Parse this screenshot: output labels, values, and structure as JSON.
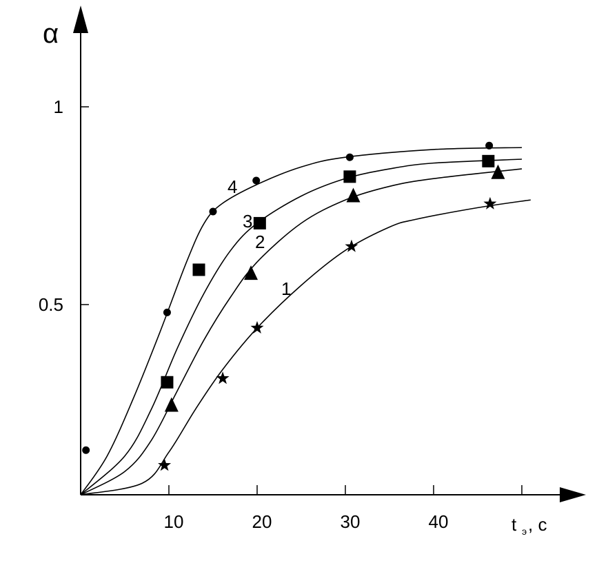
{
  "chart_data": {
    "type": "line",
    "title": "",
    "xlabel": "t",
    "xlabel_sub": "э",
    "xlabel_unit": ", c",
    "ylabel": "α",
    "xlim": [
      0,
      52
    ],
    "ylim": [
      0,
      1.1
    ],
    "grid": false,
    "x_ticks": [
      10,
      20,
      30,
      40,
      50
    ],
    "x_tick_labels": [
      "10",
      "20",
      "30",
      "40",
      ""
    ],
    "y_ticks": [
      0.5,
      1
    ],
    "y_tick_labels": [
      "0.5",
      "1"
    ],
    "series": [
      {
        "name": "1",
        "marker": "star",
        "points": [
          [
            9.5,
            0.076
          ],
          [
            16.1,
            0.3
          ],
          [
            20,
            0.43
          ],
          [
            30.7,
            0.64
          ],
          [
            46.4,
            0.75
          ]
        ],
        "curve": [
          [
            0,
            0
          ],
          [
            7,
            0.03
          ],
          [
            10,
            0.11
          ],
          [
            13,
            0.22
          ],
          [
            16,
            0.32
          ],
          [
            20,
            0.43
          ],
          [
            25,
            0.54
          ],
          [
            30,
            0.63
          ],
          [
            35,
            0.69
          ],
          [
            38,
            0.71
          ],
          [
            45,
            0.74
          ],
          [
            51,
            0.76
          ]
        ]
      },
      {
        "name": "2",
        "marker": "triangle",
        "points": [
          [
            10.3,
            0.23
          ],
          [
            19.3,
            0.57
          ],
          [
            30.9,
            0.77
          ],
          [
            47.3,
            0.83
          ]
        ],
        "curve": [
          [
            0,
            0
          ],
          [
            5,
            0.06
          ],
          [
            8,
            0.14
          ],
          [
            11,
            0.27
          ],
          [
            14,
            0.4
          ],
          [
            17,
            0.51
          ],
          [
            20,
            0.6
          ],
          [
            25,
            0.7
          ],
          [
            30,
            0.76
          ],
          [
            35,
            0.795
          ],
          [
            40,
            0.815
          ],
          [
            50,
            0.84
          ]
        ]
      },
      {
        "name": "3",
        "marker": "square",
        "points": [
          [
            9.8,
            0.29
          ],
          [
            13.4,
            0.58
          ],
          [
            20.3,
            0.7
          ],
          [
            30.5,
            0.82
          ],
          [
            46.2,
            0.86
          ]
        ],
        "curve": [
          [
            0,
            0
          ],
          [
            5,
            0.1
          ],
          [
            8,
            0.22
          ],
          [
            11,
            0.38
          ],
          [
            14,
            0.52
          ],
          [
            17,
            0.63
          ],
          [
            20,
            0.7
          ],
          [
            25,
            0.77
          ],
          [
            30,
            0.815
          ],
          [
            35,
            0.84
          ],
          [
            40,
            0.855
          ],
          [
            50,
            0.865
          ]
        ]
      },
      {
        "name": "4",
        "marker": "circle",
        "points": [
          [
            0.6,
            0.115
          ],
          [
            9.8,
            0.47
          ],
          [
            15,
            0.73
          ],
          [
            19.9,
            0.81
          ],
          [
            30.5,
            0.87
          ],
          [
            46.3,
            0.9
          ]
        ],
        "curve": [
          [
            0,
            0
          ],
          [
            3,
            0.1
          ],
          [
            6,
            0.25
          ],
          [
            9,
            0.42
          ],
          [
            12,
            0.6
          ],
          [
            14,
            0.7
          ],
          [
            16,
            0.75
          ],
          [
            20,
            0.8
          ],
          [
            25,
            0.845
          ],
          [
            30,
            0.87
          ],
          [
            40,
            0.89
          ],
          [
            50,
            0.895
          ]
        ]
      }
    ]
  }
}
